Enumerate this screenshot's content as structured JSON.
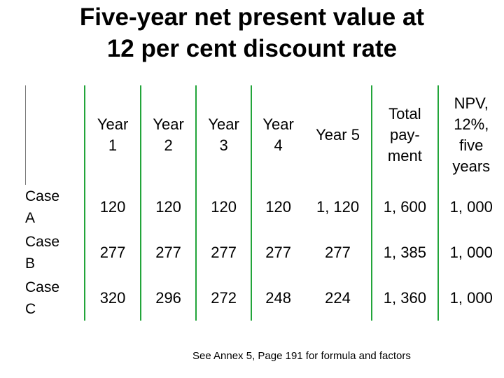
{
  "title": {
    "line1": "Five-year net present value at",
    "line2": "12 per cent discount rate"
  },
  "table": {
    "headers": [
      {
        "l1": "Year",
        "l2": "1",
        "l3": "",
        "l4": ""
      },
      {
        "l1": "Year",
        "l2": "2",
        "l3": "",
        "l4": ""
      },
      {
        "l1": "Year",
        "l2": "3",
        "l3": "",
        "l4": ""
      },
      {
        "l1": "Year",
        "l2": "4",
        "l3": "",
        "l4": ""
      },
      {
        "l1": "Year 5",
        "l2": "",
        "l3": "",
        "l4": ""
      },
      {
        "l1": "Total",
        "l2": "pay-",
        "l3": "ment",
        "l4": ""
      },
      {
        "l1": "NPV,",
        "l2": "12%,",
        "l3": "five",
        "l4": "years"
      }
    ],
    "rows": [
      {
        "label1": "Case",
        "label2": "A",
        "values": [
          "120",
          "120",
          "120",
          "120",
          "1, 120",
          "1, 600",
          "1, 000"
        ]
      },
      {
        "label1": "Case",
        "label2": "B",
        "values": [
          "277",
          "277",
          "277",
          "277",
          "277",
          "1, 385",
          "1, 000"
        ]
      },
      {
        "label1": "Case",
        "label2": "C",
        "values": [
          "320",
          "296",
          "272",
          "248",
          "224",
          "1, 360",
          "1, 000"
        ]
      }
    ]
  },
  "footnote": "See Annex 5, Page 191 for formula and factors",
  "colors": {
    "rule": "#22a53a",
    "text": "#000000",
    "background": "#ffffff"
  }
}
